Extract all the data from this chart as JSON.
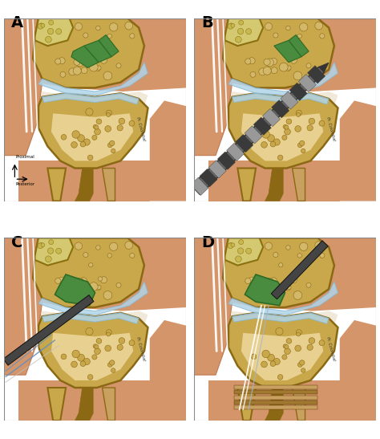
{
  "figure_width": 4.74,
  "figure_height": 5.47,
  "dpi": 100,
  "background_color": "#ffffff",
  "border_color": "#aaaaaa",
  "panel_labels": [
    "A",
    "B",
    "C",
    "D"
  ],
  "label_fontsize": 14,
  "label_fontweight": "bold",
  "skin_color": "#d4956a",
  "skin_shadow": "#c07850",
  "bone_cortex": "#8B6914",
  "bone_spongy": "#c8a84b",
  "bone_marrow": "#d4b86a",
  "bone_inner": "#e8d090",
  "cartilage_color": "#b0d4e8",
  "ligament_color": "#4a8c3f",
  "ligament_dark": "#2d6b25",
  "tendon_color": "#e8e0b0",
  "muscle_color": "#c87060",
  "drill_dark": "#333333",
  "drill_mid": "#666666",
  "drill_light": "#999999",
  "suture_color": "#d0d0d0",
  "suture_blue": "#6090c0",
  "graft_brown": "#8B6914",
  "graft_tan": "#c8a060",
  "arrow_color": "#000000",
  "text_color": "#000000",
  "signature_color": "#333333"
}
